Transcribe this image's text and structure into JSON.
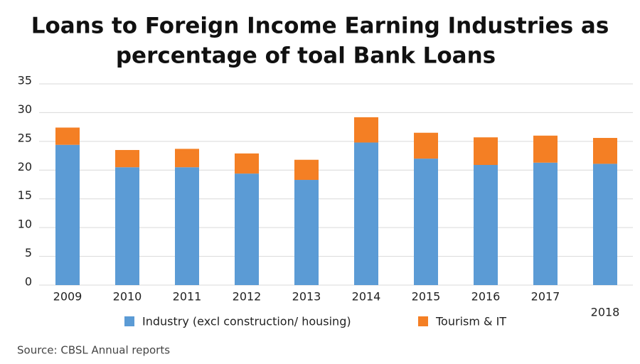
{
  "chart_data": {
    "type": "stacked_bar",
    "title": [
      "Loans to Foreign Income Earning Industries as",
      "percentage of toal Bank Loans"
    ],
    "categories": [
      "2009",
      "2010",
      "2011",
      "2012",
      "2013",
      "2014",
      "2015",
      "2016",
      "2017",
      "2018"
    ],
    "series": [
      {
        "name": "Industry (excl construction/ housing)",
        "color": "#5b9bd5",
        "values": [
          24.4,
          20.5,
          20.5,
          19.4,
          18.3,
          24.8,
          22.0,
          20.9,
          21.3,
          21.1
        ]
      },
      {
        "name": "Tourism & IT",
        "color": "#f47f24",
        "values": [
          3.0,
          3.0,
          3.2,
          3.5,
          3.5,
          4.4,
          4.5,
          4.8,
          4.7,
          4.5
        ]
      }
    ],
    "ylim": [
      0,
      35
    ],
    "yticks": [
      0,
      5,
      10,
      15,
      20,
      25,
      30,
      35
    ],
    "grid": true,
    "source": "Source: CBSL Annual reports"
  }
}
